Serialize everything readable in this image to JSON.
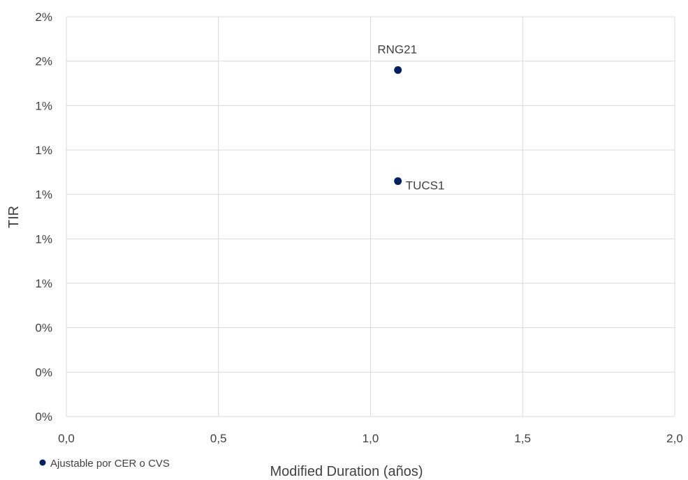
{
  "chart_data": {
    "type": "scatter",
    "title": "",
    "xlabel": "Modified Duration (años)",
    "ylabel": "TIR",
    "xlim": [
      0,
      2
    ],
    "ylim": [
      0,
      0.018
    ],
    "x_ticks": [
      0,
      0.5,
      1.0,
      1.5,
      2.0
    ],
    "x_tick_labels": [
      "0,0",
      "0,5",
      "1,0",
      "1,5",
      "2,0"
    ],
    "y_ticks": [
      0,
      0.002,
      0.004,
      0.006,
      0.008,
      0.01,
      0.012,
      0.014,
      0.016,
      0.018
    ],
    "y_tick_labels": [
      "0%",
      "0%",
      "0%",
      "1%",
      "1%",
      "1%",
      "1%",
      "1%",
      "2%",
      "2%"
    ],
    "grid": true,
    "legend_position": "bottom-left",
    "series": [
      {
        "name": "Ajustable por CER o CVS",
        "color": "#002060",
        "points": [
          {
            "label": "RNG21",
            "x": 1.09,
            "y": 0.0156,
            "label_position": "above"
          },
          {
            "label": "TUCS1",
            "x": 1.09,
            "y": 0.0106,
            "label_position": "right"
          }
        ]
      }
    ]
  }
}
